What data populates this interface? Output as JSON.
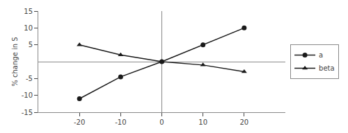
{
  "chart_data": {
    "type": "line",
    "x": [
      -20,
      -10,
      0,
      10,
      20
    ],
    "series": [
      {
        "name": "a",
        "color": "#1a1a1a",
        "marker": "circle",
        "line_style": "solid",
        "values": [
          -11,
          -4.5,
          0,
          5,
          10
        ]
      },
      {
        "name": "beta",
        "color": "#1a1a1a",
        "marker": "triangle",
        "line_style": "solid",
        "values": [
          5,
          2,
          0,
          -1,
          -3
        ]
      }
    ],
    "ylabel": "% change in S",
    "xlim": [
      -30,
      30
    ],
    "ylim": [
      -15,
      15
    ],
    "xticks": [
      -20,
      -10,
      0,
      10,
      20
    ],
    "yticks": [
      -15,
      -10,
      -5,
      5,
      10,
      15
    ],
    "grid": false,
    "legend": "right"
  }
}
